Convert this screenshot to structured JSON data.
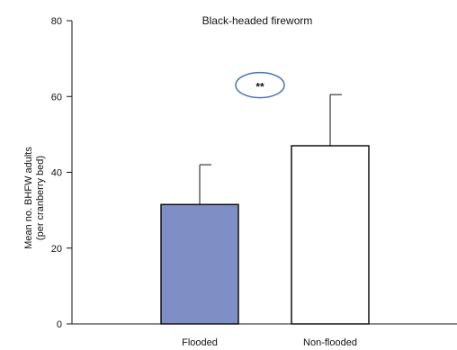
{
  "chart_data": {
    "type": "bar",
    "title": "Black-headed fireworm",
    "xlabel": "",
    "ylabel": "Mean no. BHFW adults",
    "ylabel_sub": "(per cranberry bed)",
    "ylim": [
      0,
      80
    ],
    "yticks": [
      0,
      20,
      40,
      60,
      80
    ],
    "ytick_labels": [
      "0",
      "20",
      "40",
      "60",
      "80"
    ],
    "categories": [
      "Flooded",
      "Non-flooded"
    ],
    "values": [
      31.5,
      47
    ],
    "error_upper": [
      42,
      60.5
    ],
    "bar_colors": [
      "#7f8fc6",
      "#ffffff"
    ],
    "bar_edge_color": "#111111",
    "grid": false,
    "annotation": {
      "text": "**",
      "y_value": 63,
      "shape": "ellipse",
      "color": "#4a72b8"
    }
  }
}
